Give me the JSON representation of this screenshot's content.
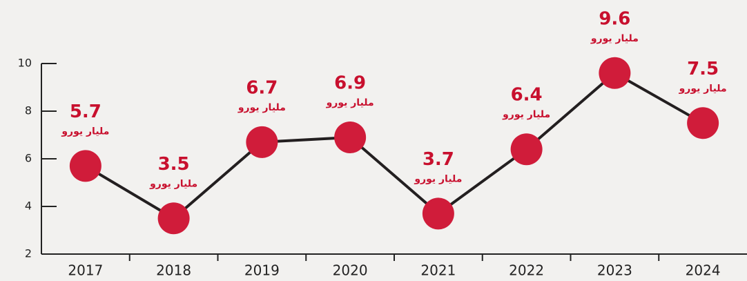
{
  "chart_data": {
    "type": "line",
    "categories": [
      "2017",
      "2018",
      "2019",
      "2020",
      "2021",
      "2022",
      "2023",
      "2024"
    ],
    "values": [
      5.7,
      3.5,
      6.7,
      6.9,
      3.7,
      6.4,
      9.6,
      7.5
    ],
    "unit_label": "مليار يورو",
    "color": "#d01c3a",
    "line_color": "#231f20",
    "ylim": [
      2,
      10
    ],
    "yticks": [
      2,
      4,
      6,
      8,
      10
    ]
  }
}
